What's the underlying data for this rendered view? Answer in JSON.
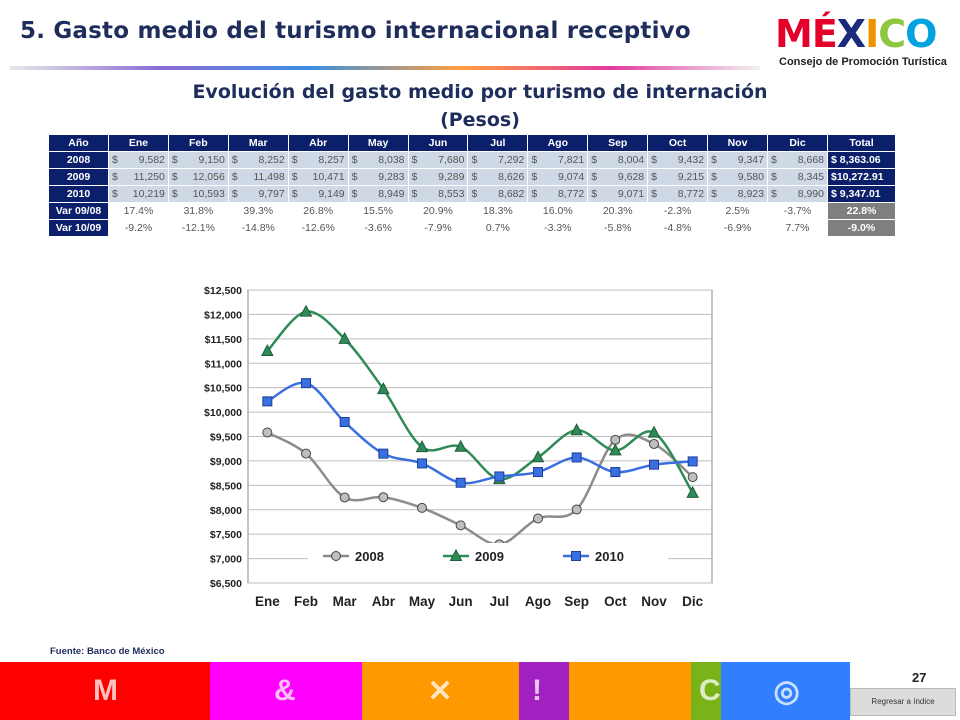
{
  "slide": {
    "title": "5. Gasto medio del turismo internacional receptivo"
  },
  "logo": {
    "word_parts": [
      "MÉ",
      "X",
      "I",
      "C",
      "O"
    ],
    "subtitle": "Consejo de Promoción Turística",
    "colors": [
      "#e4002b",
      "#1b2a7a",
      "#f39200",
      "#8dc63f",
      "#00a3e0"
    ]
  },
  "table": {
    "heading_line1": "Evolución del gasto medio por turismo de internación",
    "heading_line2": "(Pesos)",
    "headers": [
      "Año",
      "Ene",
      "Feb",
      "Mar",
      "Abr",
      "May",
      "Jun",
      "Jul",
      "Ago",
      "Sep",
      "Oct",
      "Nov",
      "Dic",
      "Total"
    ],
    "currency_symbol": "$",
    "rows": [
      {
        "label": "2008",
        "values": [
          "9,582",
          "9,150",
          "8,252",
          "8,257",
          "8,038",
          "7,680",
          "7,292",
          "7,821",
          "8,004",
          "9,432",
          "9,347",
          "8,668"
        ],
        "total": "$ 8,363.06"
      },
      {
        "label": "2009",
        "values": [
          "11,250",
          "12,056",
          "11,498",
          "10,471",
          "9,283",
          "9,289",
          "8,626",
          "9,074",
          "9,628",
          "9,215",
          "9,580",
          "8,345"
        ],
        "total": "$10,272.91"
      },
      {
        "label": "2010",
        "values": [
          "10,219",
          "10,593",
          "9,797",
          "9,149",
          "8,949",
          "8,553",
          "8,682",
          "8,772",
          "9,071",
          "8,772",
          "8,923",
          "8,990"
        ],
        "total": "$ 9,347.01"
      }
    ],
    "var_rows": [
      {
        "label": "Var 09/08",
        "values": [
          "17.4%",
          "31.8%",
          "39.3%",
          "26.8%",
          "15.5%",
          "20.9%",
          "18.3%",
          "16.0%",
          "20.3%",
          "-2.3%",
          "2.5%",
          "-3.7%"
        ],
        "total": "22.8%"
      },
      {
        "label": "Var 10/09",
        "values": [
          "-9.2%",
          "-12.1%",
          "-14.8%",
          "-12.6%",
          "-3.6%",
          "-7.9%",
          "0.7%",
          "-3.3%",
          "-5.8%",
          "-4.8%",
          "-6.9%",
          "7.7%"
        ],
        "total": "-9.0%"
      }
    ]
  },
  "chart_data": {
    "type": "line",
    "categories": [
      "Ene",
      "Feb",
      "Mar",
      "Abr",
      "May",
      "Jun",
      "Jul",
      "Ago",
      "Sep",
      "Oct",
      "Nov",
      "Dic"
    ],
    "series": [
      {
        "name": "2008",
        "values": [
          9582,
          9150,
          8252,
          8257,
          8038,
          7680,
          7292,
          7821,
          8004,
          9432,
          9347,
          8668
        ],
        "color": "#8c8c8c",
        "marker": "circle"
      },
      {
        "name": "2009",
        "values": [
          11250,
          12056,
          11498,
          10471,
          9283,
          9289,
          8626,
          9074,
          9628,
          9215,
          9580,
          8345
        ],
        "color": "#2e8b57",
        "marker": "triangle"
      },
      {
        "name": "2010",
        "values": [
          10219,
          10593,
          9797,
          9149,
          8949,
          8553,
          8682,
          8772,
          9071,
          8772,
          8923,
          8990
        ],
        "color": "#3a6fe0",
        "marker": "square"
      }
    ],
    "ylim": [
      6500,
      12500
    ],
    "yticks": [
      6500,
      7000,
      7500,
      8000,
      8500,
      9000,
      9500,
      10000,
      10500,
      11000,
      11500,
      12000,
      12500
    ],
    "ytick_labels": [
      "$6,500",
      "$7,000",
      "$7,500",
      "$8,000",
      "$8,500",
      "$9,000",
      "$9,500",
      "$10,000",
      "$10,500",
      "$11,000",
      "$11,500",
      "$12,000",
      "$12,500"
    ],
    "grid": true,
    "legend_position": "bottom-inside"
  },
  "source": "Fuente: Banco de México",
  "page_number": "27",
  "back_button_label": "Regresar a índice",
  "footer_colors": [
    "#ff0000",
    "#ff00ff",
    "#ff9900",
    "#ff9900",
    "#a020c0",
    "#ff9900",
    "#7ab317",
    "#2f7fff"
  ]
}
